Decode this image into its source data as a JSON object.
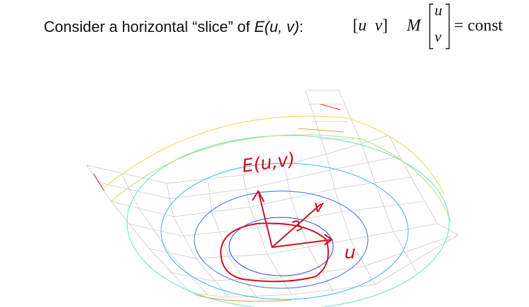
{
  "heading": {
    "prefix": "Consider a horizontal “slice” of ",
    "func": "E(u, v)",
    "suffix": ":"
  },
  "equation": {
    "row_open": "[",
    "u": "u",
    "v": "v",
    "row_close": "]",
    "matrix": "M",
    "col_u": "u",
    "col_v": "v",
    "rhs": "= const"
  },
  "annotations": {
    "surface_label": "E(u,v)",
    "axis_v": "v",
    "axis_u": "u"
  },
  "colors": {
    "mesh": "#c8c8c8",
    "ink": "#cc1020",
    "contours": [
      "#2a3fd0",
      "#3a6ee0",
      "#36b8e0",
      "#5fe0c8",
      "#b9e070",
      "#f2d24a",
      "#f09a30",
      "#d83a20"
    ]
  }
}
